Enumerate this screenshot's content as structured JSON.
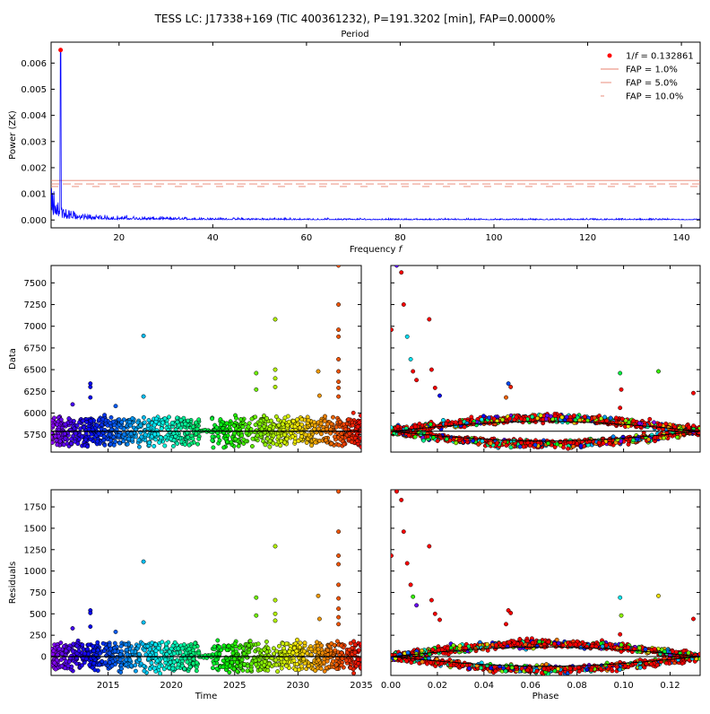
{
  "figure": {
    "title": "TESS LC: J17338+169 (TIC 400361232), P=191.3202 [min], FAP=0.0000%",
    "subtitle": "Period"
  },
  "colors": {
    "periodogram": "#0000ff",
    "peak": "#ff0000",
    "fap": "#e8806e",
    "model": "#000000",
    "phase_points": "#ff0000"
  },
  "chart_data": [
    {
      "id": "periodogram",
      "type": "line",
      "xlabel": "Frequency f",
      "ylabel": "Power (ZK)",
      "xlim": [
        5.5,
        144
      ],
      "ylim": [
        -0.0003,
        0.0068
      ],
      "xticks": [
        20,
        40,
        60,
        80,
        100,
        120,
        140
      ],
      "yticks": [
        0.0,
        0.001,
        0.002,
        0.003,
        0.004,
        0.005,
        0.006
      ],
      "ytick_labels": [
        "0.000",
        "0.001",
        "0.002",
        "0.003",
        "0.004",
        "0.005",
        "0.006"
      ],
      "peak": {
        "x": 7.53,
        "y": 0.0065
      },
      "fap_lines": [
        {
          "label": "FAP = 1.0%",
          "y": 0.00151
        },
        {
          "label": "FAP = 5.0%",
          "y": 0.00138
        },
        {
          "label": "FAP = 10.0%",
          "y": 0.00128
        }
      ],
      "legend": {
        "placement": "top-right",
        "peak_prefix": "1/",
        "peak_var": "f",
        "peak_suffix": " = 0.132861",
        "entries": [
          "FAP = 1.0%",
          "FAP = 5.0%",
          "FAP = 10.0%"
        ]
      }
    },
    {
      "id": "data-vs-time",
      "type": "scatter",
      "xlabel": "",
      "ylabel": "Data",
      "xlim": [
        2010.5,
        2035
      ],
      "ylim": [
        5550,
        7700
      ],
      "yticks": [
        5750,
        6000,
        6250,
        6500,
        6750,
        7000,
        7250,
        7500
      ],
      "baseline": 5790,
      "outliers": [
        {
          "x": 2013.6,
          "y": 6340
        },
        {
          "x": 2013.6,
          "y": 6300
        },
        {
          "x": 2013.6,
          "y": 6180
        },
        {
          "x": 2017.8,
          "y": 6890
        },
        {
          "x": 2017.8,
          "y": 6190
        },
        {
          "x": 2012.2,
          "y": 6100
        },
        {
          "x": 2015.6,
          "y": 6080
        },
        {
          "x": 2026.7,
          "y": 6460
        },
        {
          "x": 2026.7,
          "y": 6270
        },
        {
          "x": 2028.2,
          "y": 7080
        },
        {
          "x": 2028.2,
          "y": 6500
        },
        {
          "x": 2028.2,
          "y": 6400
        },
        {
          "x": 2028.2,
          "y": 6300
        },
        {
          "x": 2031.6,
          "y": 6480
        },
        {
          "x": 2031.7,
          "y": 6200
        },
        {
          "x": 2033.2,
          "y": 7700
        },
        {
          "x": 2033.2,
          "y": 7250
        },
        {
          "x": 2033.2,
          "y": 6960
        },
        {
          "x": 2033.2,
          "y": 6880
        },
        {
          "x": 2033.2,
          "y": 6620
        },
        {
          "x": 2033.2,
          "y": 6480
        },
        {
          "x": 2033.2,
          "y": 6360
        },
        {
          "x": 2033.2,
          "y": 6290
        },
        {
          "x": 2033.2,
          "y": 6190
        }
      ]
    },
    {
      "id": "data-vs-phase",
      "type": "scatter",
      "xlabel": "",
      "ylabel": "",
      "xlim": [
        0.0,
        0.1329
      ],
      "ylim": [
        5550,
        7700
      ],
      "model_center": 5790,
      "model_amplitude": 150,
      "outliers": [
        {
          "x": 0.0025,
          "y": 7700
        },
        {
          "x": 0.0045,
          "y": 7620
        },
        {
          "x": 0.0055,
          "y": 7250
        },
        {
          "x": 0.0002,
          "y": 6960
        },
        {
          "x": 0.007,
          "y": 6880
        },
        {
          "x": 0.0085,
          "y": 6620
        },
        {
          "x": 0.0095,
          "y": 6480
        },
        {
          "x": 0.011,
          "y": 6380
        },
        {
          "x": 0.0165,
          "y": 7080
        },
        {
          "x": 0.0175,
          "y": 6500
        },
        {
          "x": 0.019,
          "y": 6290
        },
        {
          "x": 0.021,
          "y": 6200
        },
        {
          "x": 0.0505,
          "y": 6340
        },
        {
          "x": 0.0515,
          "y": 6300
        },
        {
          "x": 0.0495,
          "y": 6180
        },
        {
          "x": 0.0985,
          "y": 6460
        },
        {
          "x": 0.099,
          "y": 6270
        },
        {
          "x": 0.115,
          "y": 6480
        },
        {
          "x": 0.13,
          "y": 6230
        },
        {
          "x": 0.0985,
          "y": 6060
        }
      ]
    },
    {
      "id": "residuals-vs-time",
      "type": "scatter",
      "xlabel": "Time",
      "ylabel": "Residuals",
      "xlim": [
        2010.5,
        2035
      ],
      "ylim": [
        -220,
        1950
      ],
      "xticks": [
        2015,
        2020,
        2025,
        2030,
        2035
      ],
      "yticks": [
        0,
        250,
        500,
        750,
        1000,
        1250,
        1500,
        1750
      ],
      "baseline": 0,
      "outliers": [
        {
          "x": 2013.6,
          "y": 540
        },
        {
          "x": 2013.6,
          "y": 510
        },
        {
          "x": 2013.6,
          "y": 350
        },
        {
          "x": 2017.8,
          "y": 1110
        },
        {
          "x": 2017.8,
          "y": 400
        },
        {
          "x": 2012.2,
          "y": 330
        },
        {
          "x": 2015.6,
          "y": 290
        },
        {
          "x": 2026.7,
          "y": 690
        },
        {
          "x": 2026.7,
          "y": 480
        },
        {
          "x": 2028.2,
          "y": 1290
        },
        {
          "x": 2028.2,
          "y": 660
        },
        {
          "x": 2028.2,
          "y": 500
        },
        {
          "x": 2028.2,
          "y": 420
        },
        {
          "x": 2031.6,
          "y": 710
        },
        {
          "x": 2031.7,
          "y": 440
        },
        {
          "x": 2033.2,
          "y": 1930
        },
        {
          "x": 2033.2,
          "y": 1460
        },
        {
          "x": 2033.2,
          "y": 1180
        },
        {
          "x": 2033.2,
          "y": 1080
        },
        {
          "x": 2033.2,
          "y": 840
        },
        {
          "x": 2033.2,
          "y": 680
        },
        {
          "x": 2033.2,
          "y": 560
        },
        {
          "x": 2033.2,
          "y": 460
        },
        {
          "x": 2033.2,
          "y": 380
        }
      ]
    },
    {
      "id": "residuals-vs-phase",
      "type": "scatter",
      "xlabel": "Phase",
      "ylabel": "",
      "xlim": [
        0.0,
        0.1329
      ],
      "ylim": [
        -220,
        1950
      ],
      "xticks": [
        0.0,
        0.02,
        0.04,
        0.06,
        0.08,
        0.1,
        0.12
      ],
      "xtick_labels": [
        "0.00",
        "0.02",
        "0.04",
        "0.06",
        "0.08",
        "0.10",
        "0.12"
      ],
      "baseline": 0,
      "model_amplitude": 150,
      "outliers": [
        {
          "x": 0.0025,
          "y": 1930
        },
        {
          "x": 0.0045,
          "y": 1830
        },
        {
          "x": 0.0055,
          "y": 1460
        },
        {
          "x": 0.0002,
          "y": 1180
        },
        {
          "x": 0.007,
          "y": 1090
        },
        {
          "x": 0.0085,
          "y": 840
        },
        {
          "x": 0.0095,
          "y": 700
        },
        {
          "x": 0.011,
          "y": 600
        },
        {
          "x": 0.0165,
          "y": 1290
        },
        {
          "x": 0.0175,
          "y": 660
        },
        {
          "x": 0.019,
          "y": 500
        },
        {
          "x": 0.021,
          "y": 430
        },
        {
          "x": 0.0505,
          "y": 540
        },
        {
          "x": 0.0515,
          "y": 510
        },
        {
          "x": 0.0495,
          "y": 380
        },
        {
          "x": 0.0985,
          "y": 690
        },
        {
          "x": 0.099,
          "y": 480
        },
        {
          "x": 0.115,
          "y": 710
        },
        {
          "x": 0.13,
          "y": 440
        },
        {
          "x": 0.0985,
          "y": 260
        }
      ]
    }
  ]
}
